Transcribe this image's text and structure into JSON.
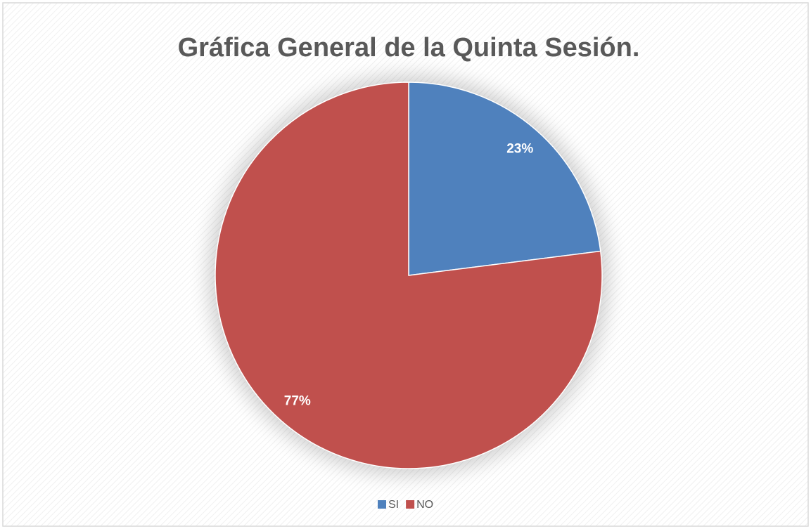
{
  "chart_data": {
    "type": "pie",
    "title": "Gráfica General de la Quinta Sesión.",
    "categories": [
      "SI",
      "NO"
    ],
    "values": [
      23,
      77
    ],
    "value_labels": [
      "23%",
      "77%"
    ],
    "colors": [
      "#4f81bd",
      "#c0504d"
    ],
    "legend": "bottom"
  }
}
